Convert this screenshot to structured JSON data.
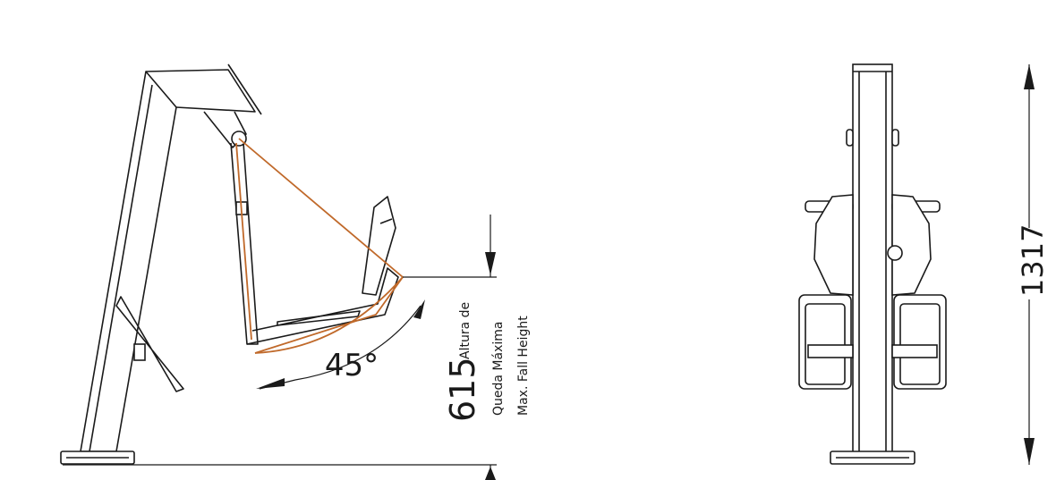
{
  "angle_label": "45°",
  "fall_height": {
    "value": "615",
    "label_lines": [
      "Altura de",
      "Queda Máxima",
      "Max. Fall Height"
    ]
  },
  "height_dimension": "1317"
}
